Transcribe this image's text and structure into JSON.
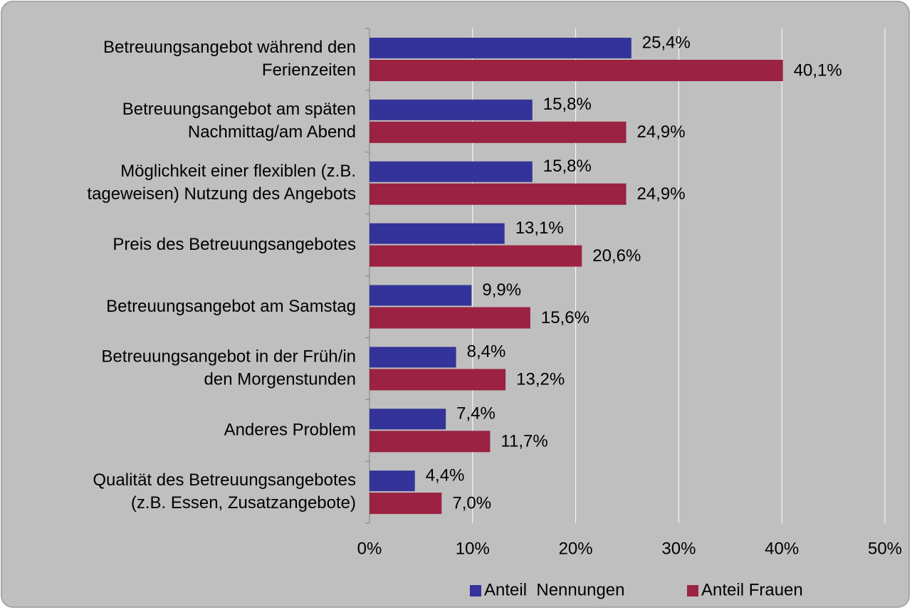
{
  "chart_data": {
    "type": "bar",
    "orientation": "horizontal",
    "categories": [
      "Betreuungsangebot während den\nFerienzeiten",
      "Betreuungsangebot am späten\nNachmittag/am Abend",
      "Möglichkeit einer flexiblen (z.B.\ntageweisen) Nutzung des Angebots",
      "Preis des Betreuungsangebotes",
      "Betreuungsangebot am Samstag",
      "Betreuungsangebot in der Früh/in\nden Morgenstunden",
      "Anderes Problem",
      "Qualität des Betreuungsangebotes\n(z.B. Essen, Zusatzangebote)"
    ],
    "series": [
      {
        "name": "Anteil  Nennungen",
        "color": "#333399",
        "values": [
          25.4,
          15.8,
          15.8,
          13.1,
          9.9,
          8.4,
          7.4,
          4.4
        ],
        "value_labels": [
          "25,4%",
          "15,8%",
          "15,8%",
          "13,1%",
          "9,9%",
          "8,4%",
          "7,4%",
          "4,4%"
        ]
      },
      {
        "name": "Anteil Frauen",
        "color": "#9b2242",
        "values": [
          40.1,
          24.9,
          24.9,
          20.6,
          15.6,
          13.2,
          11.7,
          7.0
        ],
        "value_labels": [
          "40,1%",
          "24,9%",
          "24,9%",
          "20,6%",
          "15,6%",
          "13,2%",
          "11,7%",
          "7,0%"
        ]
      }
    ],
    "xlim": [
      0,
      50
    ],
    "xticks": [
      {
        "value": 0,
        "label": "0%"
      },
      {
        "value": 10,
        "label": "10%"
      },
      {
        "value": 20,
        "label": "20%"
      },
      {
        "value": 30,
        "label": "30%"
      },
      {
        "value": 40,
        "label": "40%"
      },
      {
        "value": 50,
        "label": "50%"
      }
    ],
    "grid": true,
    "legend": "bottom"
  }
}
